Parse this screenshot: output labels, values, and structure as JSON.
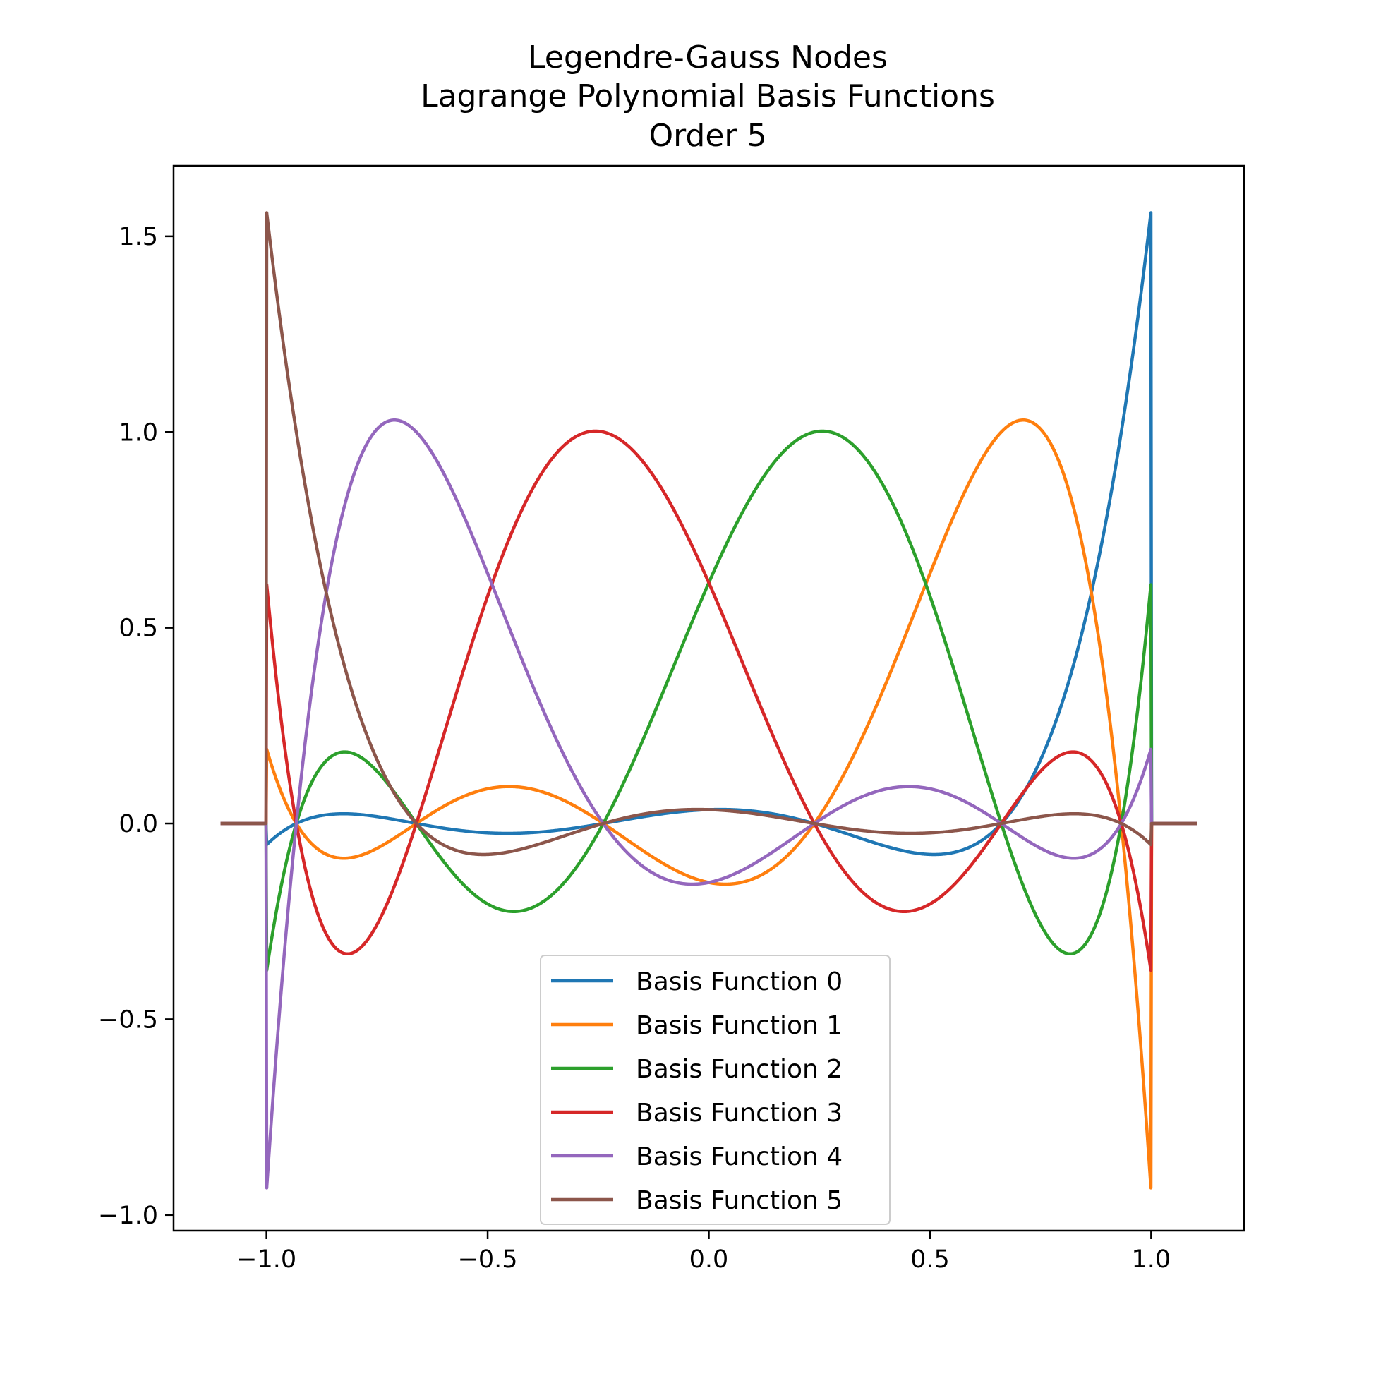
{
  "chart_data": {
    "type": "line",
    "title_lines": [
      "Legendre-Gauss Nodes",
      "Lagrange Polynomial Basis Functions",
      "Order 5"
    ],
    "xlabel": "",
    "ylabel": "",
    "xlim": [
      -1.21,
      1.21
    ],
    "ylim": [
      -1.04,
      1.68
    ],
    "x_ticks": [
      {
        "value": -1.0,
        "label": "−1.0"
      },
      {
        "value": -0.5,
        "label": "−0.5"
      },
      {
        "value": 0.0,
        "label": "0.0"
      },
      {
        "value": 0.5,
        "label": "0.5"
      },
      {
        "value": 1.0,
        "label": "1.0"
      }
    ],
    "y_ticks": [
      {
        "value": -1.0,
        "label": "−1.0"
      },
      {
        "value": -0.5,
        "label": "−0.5"
      },
      {
        "value": 0.0,
        "label": "0.0"
      },
      {
        "value": 0.5,
        "label": "0.5"
      },
      {
        "value": 1.0,
        "label": "1.0"
      },
      {
        "value": 1.5,
        "label": "1.5"
      }
    ],
    "grid": false,
    "legend_position": "lower center",
    "sampled_range": [
      -1.1,
      1.1
    ],
    "series": [
      {
        "name": "Basis Function 0",
        "color": "#1f77b4"
      },
      {
        "name": "Basis Function 1",
        "color": "#ff7f0e"
      },
      {
        "name": "Basis Function 2",
        "color": "#2ca02c"
      },
      {
        "name": "Basis Function 3",
        "color": "#d62728"
      },
      {
        "name": "Basis Function 4",
        "color": "#9467bd"
      },
      {
        "name": "Basis Function 5",
        "color": "#8c564b"
      }
    ],
    "nodes": [
      0.9324695142,
      0.6612093865,
      0.2386191861,
      -0.2386191861,
      -0.6612093865,
      -0.9324695142
    ],
    "domain": [
      -1.0,
      1.0
    ],
    "value_outside_domain": 0
  }
}
